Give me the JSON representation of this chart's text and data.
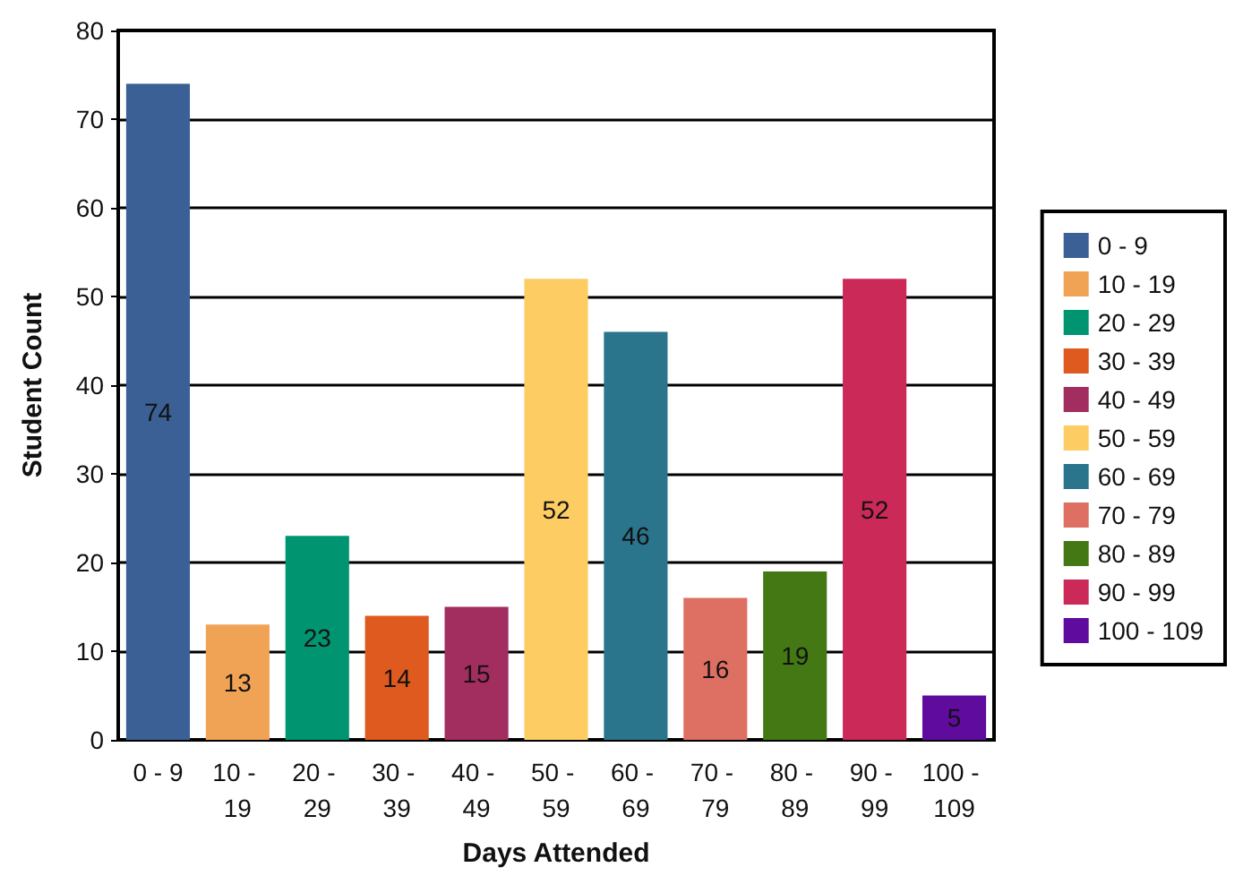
{
  "chart_data": {
    "type": "bar",
    "xlabel": "Days Attended",
    "ylabel": "Student Count",
    "categories": [
      "0 - 9",
      "10 - 19",
      "20 - 29",
      "30 - 39",
      "40 - 49",
      "50 - 59",
      "60 - 69",
      "70 - 79",
      "80 - 89",
      "90 - 99",
      "100 - 109"
    ],
    "series": [
      {
        "name": "0 - 9",
        "color": "#3a6095",
        "values": [
          74,
          null,
          null,
          null,
          null,
          null,
          null,
          null,
          null,
          null,
          null
        ]
      },
      {
        "name": "10 - 19",
        "color": "#f0a355",
        "values": [
          null,
          13,
          null,
          null,
          null,
          null,
          null,
          null,
          null,
          null,
          null
        ]
      },
      {
        "name": "20 - 29",
        "color": "#009570",
        "values": [
          null,
          null,
          23,
          null,
          null,
          null,
          null,
          null,
          null,
          null,
          null
        ]
      },
      {
        "name": "30 - 39",
        "color": "#df5a1f",
        "values": [
          null,
          null,
          null,
          14,
          null,
          null,
          null,
          null,
          null,
          null,
          null
        ]
      },
      {
        "name": "40 - 49",
        "color": "#a22d5f",
        "values": [
          null,
          null,
          null,
          null,
          15,
          null,
          null,
          null,
          null,
          null,
          null
        ]
      },
      {
        "name": "50 - 59",
        "color": "#fdcd63",
        "values": [
          null,
          null,
          null,
          null,
          null,
          52,
          null,
          null,
          null,
          null,
          null
        ]
      },
      {
        "name": "60 - 69",
        "color": "#2a758b",
        "values": [
          null,
          null,
          null,
          null,
          null,
          null,
          46,
          null,
          null,
          null,
          null
        ]
      },
      {
        "name": "70 - 79",
        "color": "#dd7063",
        "values": [
          null,
          null,
          null,
          null,
          null,
          null,
          null,
          16,
          null,
          null,
          null
        ]
      },
      {
        "name": "80 - 89",
        "color": "#447814",
        "values": [
          null,
          null,
          null,
          null,
          null,
          null,
          null,
          null,
          19,
          null,
          null
        ]
      },
      {
        "name": "90 - 99",
        "color": "#cb2958",
        "values": [
          null,
          null,
          null,
          null,
          null,
          null,
          null,
          null,
          null,
          52,
          null
        ]
      },
      {
        "name": "100 - 109",
        "color": "#5e0b9e",
        "values": [
          null,
          null,
          null,
          null,
          null,
          null,
          null,
          null,
          null,
          null,
          5
        ]
      }
    ],
    "stacked": true,
    "ylim": [
      0,
      80
    ],
    "yticks": [
      0,
      10,
      20,
      30,
      40,
      50,
      60,
      70,
      80
    ],
    "grid": "y",
    "data_labels": true,
    "legend": "right"
  }
}
